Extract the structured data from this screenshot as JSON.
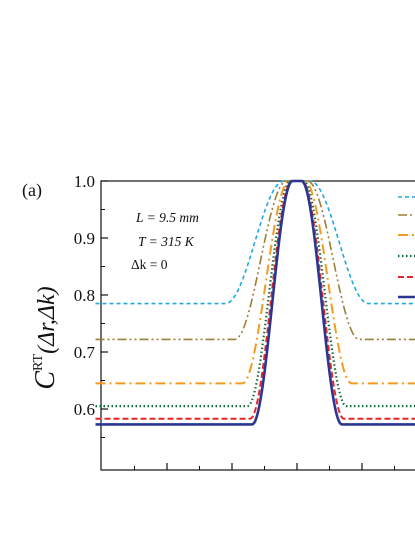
{
  "chart_data": {
    "type": "line",
    "panel_label": "(a)",
    "ylabel": {
      "main": "C",
      "sup": "RT",
      "args": "(Δr,Δk)"
    },
    "ylim": [
      0.5,
      1.0
    ],
    "yticks": [
      0.6,
      0.7,
      0.8,
      0.9,
      1.0
    ],
    "ytick_labels": [
      "0.6",
      "0.7",
      "0.8",
      "0.9",
      "1.0"
    ],
    "xlim": [
      -1.55,
      1.55
    ],
    "x_major_ticks": [
      -1,
      -0.5,
      0,
      0.5,
      1
    ],
    "x_minor_ticks": [
      -1.25,
      -0.75,
      -0.25,
      0.25,
      0.75,
      1.25
    ],
    "annotations": {
      "L": "L = 9.5 mm",
      "T": "T = 315 K",
      "dk": "Δk = 0"
    },
    "series": [
      {
        "baseline": 0.785,
        "halfwidth": 0.55,
        "flat": 0.1,
        "color": "#1fa9e0",
        "dash": "4,3",
        "width": 1.6
      },
      {
        "baseline": 0.722,
        "halfwidth": 0.48,
        "flat": 0.08,
        "color": "#9b7f3a",
        "dash": "9,3,2,3,2,3",
        "width": 1.6
      },
      {
        "baseline": 0.645,
        "halfwidth": 0.42,
        "flat": 0.06,
        "color": "#f39a1f",
        "dash": "10,4,2,4",
        "width": 2.0
      },
      {
        "baseline": 0.605,
        "halfwidth": 0.38,
        "flat": 0.05,
        "color": "#136b3a",
        "dash": "1.5,2.5",
        "width": 2.2
      },
      {
        "baseline": 0.583,
        "halfwidth": 0.36,
        "flat": 0.04,
        "color": "#e3262b",
        "dash": "6,3",
        "width": 2.0
      },
      {
        "baseline": 0.573,
        "halfwidth": 0.345,
        "flat": 0.035,
        "color": "#2c3590",
        "dash": "",
        "width": 2.6
      }
    ]
  }
}
